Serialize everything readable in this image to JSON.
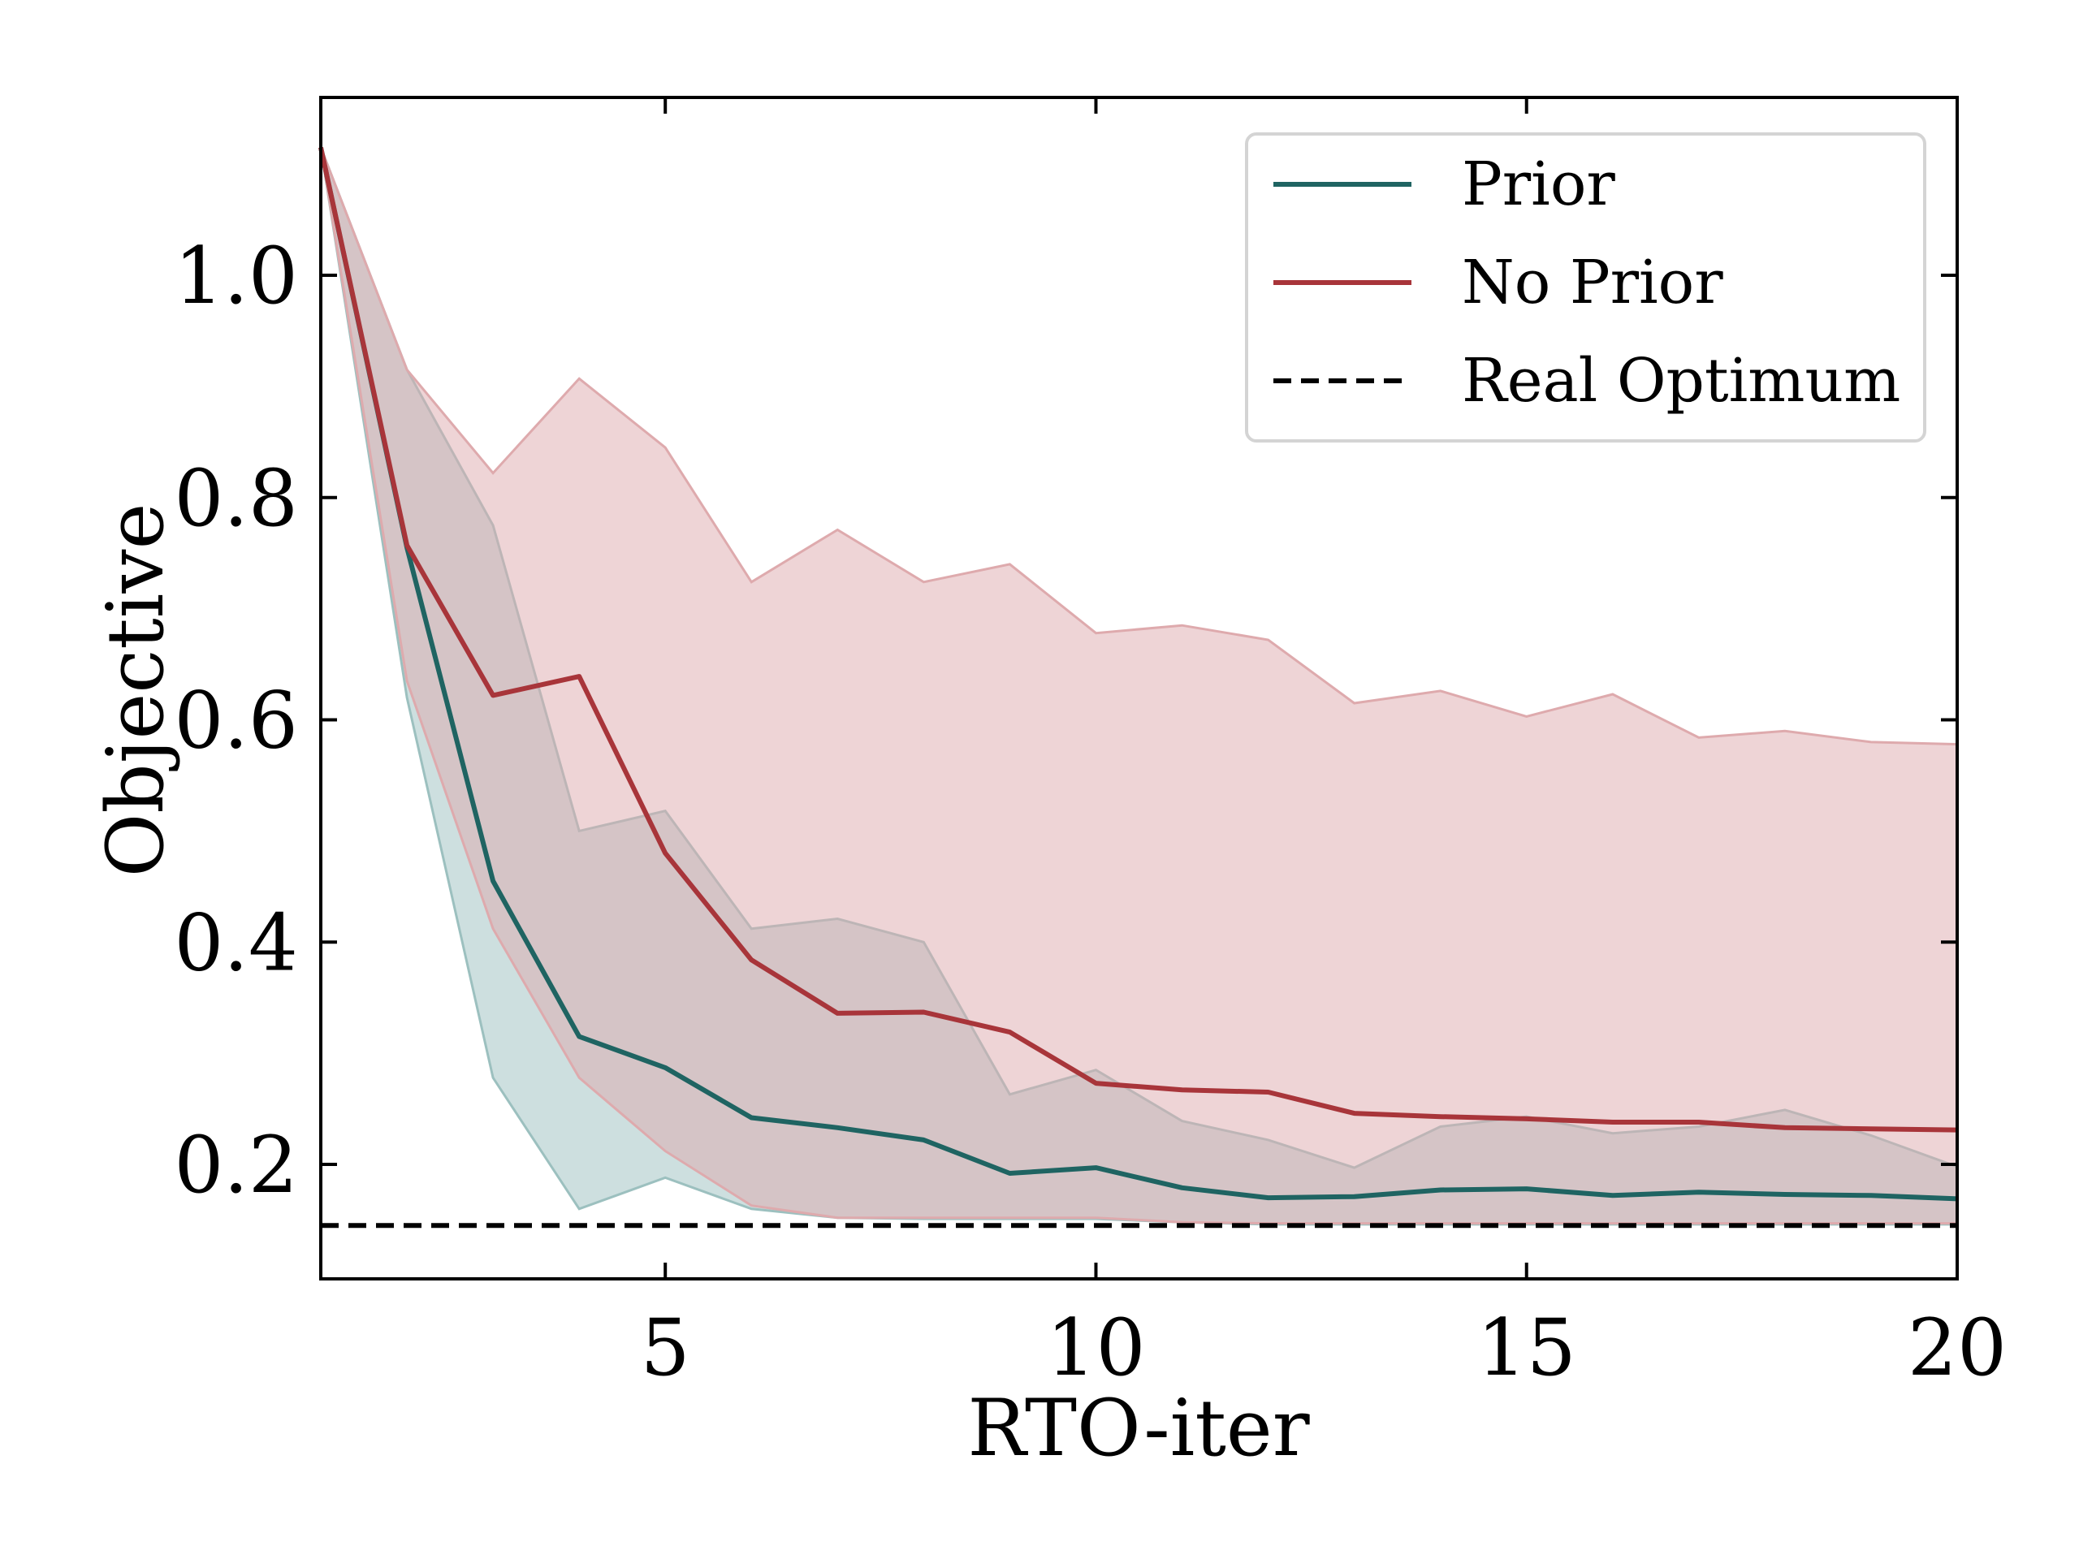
{
  "chart_data": {
    "type": "line",
    "title": "",
    "xlabel": "RTO-iter",
    "ylabel": "Objective",
    "xlim": [
      1,
      20
    ],
    "ylim": [
      0.097,
      1.16
    ],
    "xticks": [
      5,
      10,
      15,
      20
    ],
    "xtick_labels": [
      "5",
      "10",
      "15",
      "20"
    ],
    "yticks": [
      0.2,
      0.4,
      0.6,
      0.8,
      1.0
    ],
    "ytick_labels": [
      "0.2",
      "0.4",
      "0.6",
      "0.8",
      "1.0"
    ],
    "grid": false,
    "legend_position": "top-right",
    "x": [
      1,
      2,
      3,
      4,
      5,
      6,
      7,
      8,
      9,
      10,
      11,
      12,
      13,
      14,
      15,
      16,
      17,
      18,
      19,
      20
    ],
    "series": [
      {
        "name": "Prior",
        "color": "#1f6462",
        "band_color": "#9cc0bf",
        "values": [
          1.115,
          0.755,
          0.455,
          0.315,
          0.287,
          0.242,
          0.233,
          0.222,
          0.192,
          0.197,
          0.179,
          0.17,
          0.171,
          0.177,
          0.178,
          0.172,
          0.175,
          0.173,
          0.172,
          0.169
        ],
        "lower": [
          1.115,
          0.62,
          0.278,
          0.16,
          0.188,
          0.16,
          0.152,
          0.151,
          0.151,
          0.151,
          0.148,
          0.146,
          0.146,
          0.146,
          0.146,
          0.146,
          0.146,
          0.146,
          0.146,
          0.146
        ],
        "upper": [
          1.115,
          0.915,
          0.775,
          0.5,
          0.518,
          0.412,
          0.421,
          0.4,
          0.263,
          0.285,
          0.239,
          0.222,
          0.197,
          0.234,
          0.243,
          0.228,
          0.234,
          0.249,
          0.226,
          0.198
        ]
      },
      {
        "name": "No Prior",
        "color": "#a8353a",
        "band_color": "#deaaad",
        "values": [
          1.115,
          0.757,
          0.622,
          0.639,
          0.48,
          0.384,
          0.336,
          0.337,
          0.319,
          0.273,
          0.267,
          0.265,
          0.246,
          0.243,
          0.241,
          0.238,
          0.238,
          0.233,
          0.232,
          0.231
        ],
        "lower": [
          1.115,
          0.635,
          0.412,
          0.278,
          0.212,
          0.163,
          0.152,
          0.152,
          0.152,
          0.152,
          0.148,
          0.147,
          0.147,
          0.147,
          0.147,
          0.147,
          0.147,
          0.147,
          0.147,
          0.147
        ],
        "upper": [
          1.115,
          0.915,
          0.822,
          0.907,
          0.845,
          0.724,
          0.771,
          0.724,
          0.74,
          0.678,
          0.685,
          0.672,
          0.615,
          0.626,
          0.603,
          0.623,
          0.584,
          0.59,
          0.58,
          0.578
        ]
      },
      {
        "name": "Real Optimum",
        "color": "#000000",
        "style": "dashed",
        "values": [
          0.145,
          0.145,
          0.145,
          0.145,
          0.145,
          0.145,
          0.145,
          0.145,
          0.145,
          0.145,
          0.145,
          0.145,
          0.145,
          0.145,
          0.145,
          0.145,
          0.145,
          0.145,
          0.145,
          0.145
        ]
      }
    ]
  }
}
